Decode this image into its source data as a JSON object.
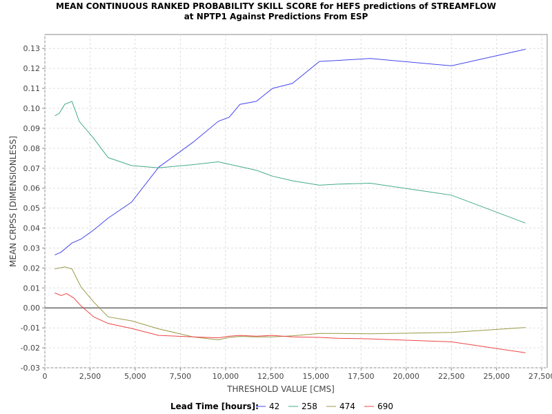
{
  "chart_data": {
    "type": "line",
    "title": [
      "MEAN CONTINUOUS RANKED PROBABILITY SKILL SCORE for HEFS predictions of STREAMFLOW",
      "at NPTP1 Against Predictions From ESP"
    ],
    "xlabel": "THRESHOLD VALUE [CMS]",
    "ylabel": "MEAN CRPSS [DIMENSIONLESS]",
    "xlim": [
      0,
      27800
    ],
    "ylim": [
      -0.03,
      0.137
    ],
    "xticks": [
      0,
      2500,
      5000,
      7500,
      10000,
      12500,
      15000,
      17500,
      20000,
      22500,
      25000,
      27500
    ],
    "xtick_labels": [
      "0",
      "2,500",
      "5,000",
      "7,500",
      "10,000",
      "12,500",
      "15,000",
      "17,500",
      "20,000",
      "22,500",
      "25,000",
      "27,500"
    ],
    "yticks": [
      -0.03,
      -0.02,
      -0.01,
      0.0,
      0.01,
      0.02,
      0.03,
      0.04,
      0.05,
      0.06,
      0.07,
      0.08,
      0.09,
      0.1,
      0.11,
      0.12,
      0.13
    ],
    "ytick_labels": [
      "-0.03",
      "-0.02",
      "-0.01",
      "0.00",
      "0.01",
      "0.02",
      "0.03",
      "0.04",
      "0.05",
      "0.06",
      "0.07",
      "0.08",
      "0.09",
      "0.10",
      "0.11",
      "0.12",
      "0.13"
    ],
    "grid": true,
    "reference_line_y": 0.0,
    "legend": {
      "title": "Lead Time [hours]:",
      "placement": "bottom-center"
    },
    "series": [
      {
        "name": "42",
        "color": "#4444ee",
        "x": [
          550,
          900,
          1500,
          2000,
          2700,
          3500,
          4800,
          6300,
          8200,
          9600,
          10200,
          10800,
          11700,
          12600,
          13700,
          15200,
          16200,
          18000,
          22500,
          26600
        ],
        "y": [
          0.0265,
          0.028,
          0.0325,
          0.0345,
          0.039,
          0.045,
          0.053,
          0.0705,
          0.083,
          0.0935,
          0.0955,
          0.102,
          0.1035,
          0.11,
          0.1125,
          0.1235,
          0.124,
          0.125,
          0.1213,
          0.1296
        ]
      },
      {
        "name": "258",
        "color": "#44aa88",
        "x": [
          550,
          800,
          1100,
          1500,
          1900,
          2700,
          3500,
          4800,
          6300,
          8200,
          9600,
          10200,
          11700,
          12600,
          13700,
          15200,
          16200,
          18000,
          22500,
          26600
        ],
        "y": [
          0.0962,
          0.0975,
          0.102,
          0.1035,
          0.0935,
          0.085,
          0.0753,
          0.0713,
          0.0702,
          0.0718,
          0.0732,
          0.072,
          0.069,
          0.066,
          0.0637,
          0.0615,
          0.062,
          0.0625,
          0.0565,
          0.0425
        ]
      },
      {
        "name": "474",
        "color": "#999944",
        "x": [
          550,
          800,
          1100,
          1500,
          2000,
          2700,
          3500,
          4800,
          6300,
          8200,
          9600,
          10200,
          10800,
          11700,
          12600,
          13700,
          15200,
          16200,
          18000,
          22500,
          26600
        ],
        "y": [
          0.0195,
          0.02,
          0.0205,
          0.0195,
          0.0105,
          0.003,
          -0.0045,
          -0.0065,
          -0.0105,
          -0.0145,
          -0.016,
          -0.0148,
          -0.0143,
          -0.0145,
          -0.0145,
          -0.014,
          -0.0128,
          -0.0128,
          -0.013,
          -0.0123,
          -0.0098
        ]
      },
      {
        "name": "690",
        "color": "#ee4444",
        "x": [
          550,
          900,
          1200,
          1600,
          2000,
          2700,
          3500,
          4800,
          6300,
          8200,
          9600,
          10200,
          10800,
          11700,
          12600,
          13700,
          15200,
          16200,
          18000,
          22500,
          26600
        ],
        "y": [
          0.0075,
          0.0062,
          0.0072,
          0.005,
          0.001,
          -0.0045,
          -0.0078,
          -0.0103,
          -0.0138,
          -0.0145,
          -0.015,
          -0.0142,
          -0.0138,
          -0.0142,
          -0.0138,
          -0.0145,
          -0.0148,
          -0.0152,
          -0.0155,
          -0.017,
          -0.0225
        ]
      }
    ]
  }
}
